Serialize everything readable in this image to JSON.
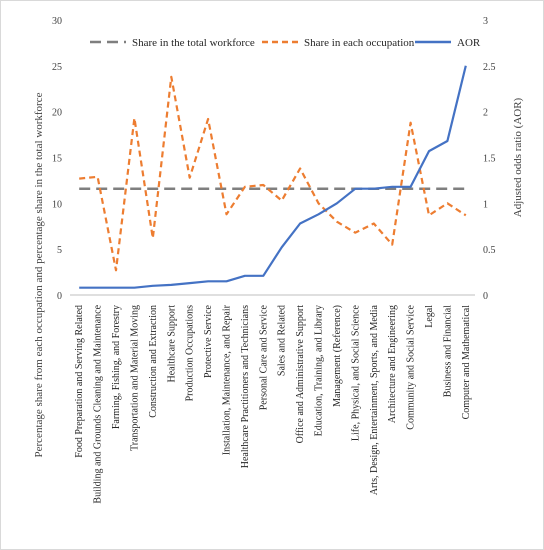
{
  "chart_data": {
    "type": "line",
    "ylabel_left": "Percentage share from each occupation and  percentage share in the total workforce",
    "ylabel_right": "Adjusted odds ratio (AOR)",
    "ylim_left": [
      0,
      30
    ],
    "ylim_right": [
      0,
      3
    ],
    "left_ticks": [
      "0",
      "5",
      "10",
      "15",
      "20",
      "25",
      "30"
    ],
    "right_ticks": [
      "0",
      "0.5",
      "1",
      "1.5",
      "2",
      "2.5",
      "3"
    ],
    "grid": false,
    "legend_position": "top",
    "categories": [
      "Food Preparation and Serving Related",
      "Building and Grounds Cleaning and Maintenance",
      "Farming, Fishing, and Forestry",
      "Transportation and Material Moving",
      "Construction and Extraction",
      "Healthcare Support",
      "Production Occupations",
      "Protective Service",
      "Installation, Maintenance, and Repair",
      "Healthcare Practitioners and Technicians",
      "Personal Care and Service",
      "Sales and Related",
      "Office and Administrative Support",
      "Education, Training, and Library",
      "Management (Reference)",
      "Life, Physical, and Social Science",
      "Arts, Design, Entertainment, Sports, and Media",
      "Architecture and Engineering",
      "Community and Social Service",
      "Legal",
      "Business and Financial",
      "Computer and Mathematical"
    ],
    "series": [
      {
        "name": "Share in the total workforce",
        "axis": "left",
        "style": "long-dash",
        "color": "#7f7f7f",
        "values": [
          11.6,
          11.6,
          11.6,
          11.6,
          11.6,
          11.6,
          11.6,
          11.6,
          11.6,
          11.6,
          11.6,
          11.6,
          11.6,
          11.6,
          11.6,
          11.6,
          11.6,
          11.6,
          11.6,
          11.6,
          11.6,
          11.6
        ]
      },
      {
        "name": "Share in each occupation",
        "axis": "left",
        "style": "dash",
        "color": "#ed7d31",
        "values": [
          12.7,
          12.9,
          2.7,
          19.3,
          6.2,
          23.8,
          12.8,
          19.2,
          8.8,
          11.8,
          12.0,
          10.3,
          13.8,
          10.0,
          8.0,
          6.8,
          7.8,
          5.5,
          18.8,
          8.7,
          10.0,
          8.7
        ]
      },
      {
        "name": "AOR",
        "axis": "right",
        "style": "solid",
        "color": "#4472c4",
        "values": [
          0.08,
          0.08,
          0.08,
          0.08,
          0.1,
          0.11,
          0.13,
          0.15,
          0.15,
          0.21,
          0.21,
          0.52,
          0.78,
          0.88,
          1.0,
          1.16,
          1.16,
          1.18,
          1.18,
          1.57,
          1.68,
          2.5
        ]
      }
    ]
  }
}
